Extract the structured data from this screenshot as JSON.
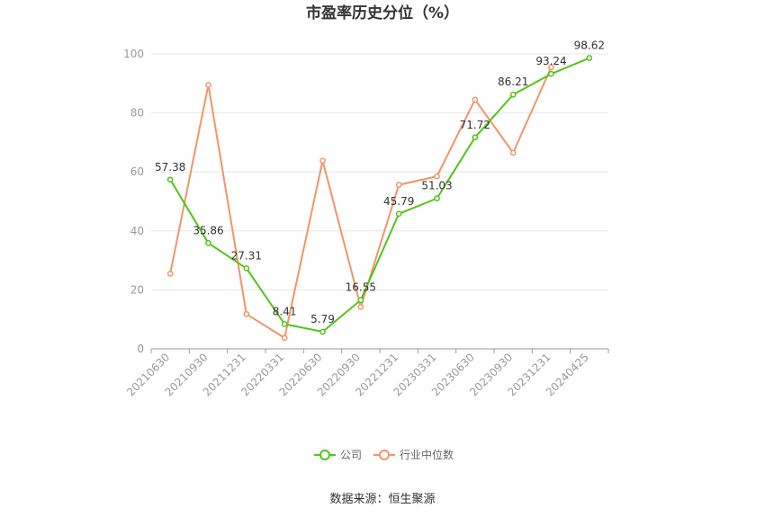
{
  "chart_data": {
    "type": "line",
    "title": "市盈率历史分位（%）",
    "categories": [
      "20210630",
      "20210930",
      "20211231",
      "20220331",
      "20220630",
      "20220930",
      "20221231",
      "20230331",
      "20230630",
      "20230930",
      "20231231",
      "20240425"
    ],
    "ylim": [
      0,
      100
    ],
    "yticks": [
      0,
      20,
      40,
      60,
      80,
      100
    ],
    "grid": true,
    "legend_position": "bottom",
    "series": [
      {
        "name": "公司",
        "color": "#52c41a",
        "values": [
          57.38,
          35.86,
          27.31,
          8.41,
          5.79,
          16.55,
          45.79,
          51.03,
          71.72,
          86.21,
          93.24,
          98.62
        ],
        "labels": [
          "57.38",
          "35.86",
          "27.31",
          "8.41",
          "5.79",
          "16.55",
          "45.79",
          "51.03",
          "71.72",
          "86.21",
          "93.24",
          "98.62"
        ]
      },
      {
        "name": "行业中位数",
        "color": "#f0956a",
        "values": [
          25.5,
          89.5,
          11.8,
          3.7,
          63.8,
          14.2,
          55.6,
          58.5,
          84.5,
          66.5,
          95.5,
          null
        ]
      }
    ]
  },
  "footer": {
    "source": "数据来源：恒生聚源"
  }
}
